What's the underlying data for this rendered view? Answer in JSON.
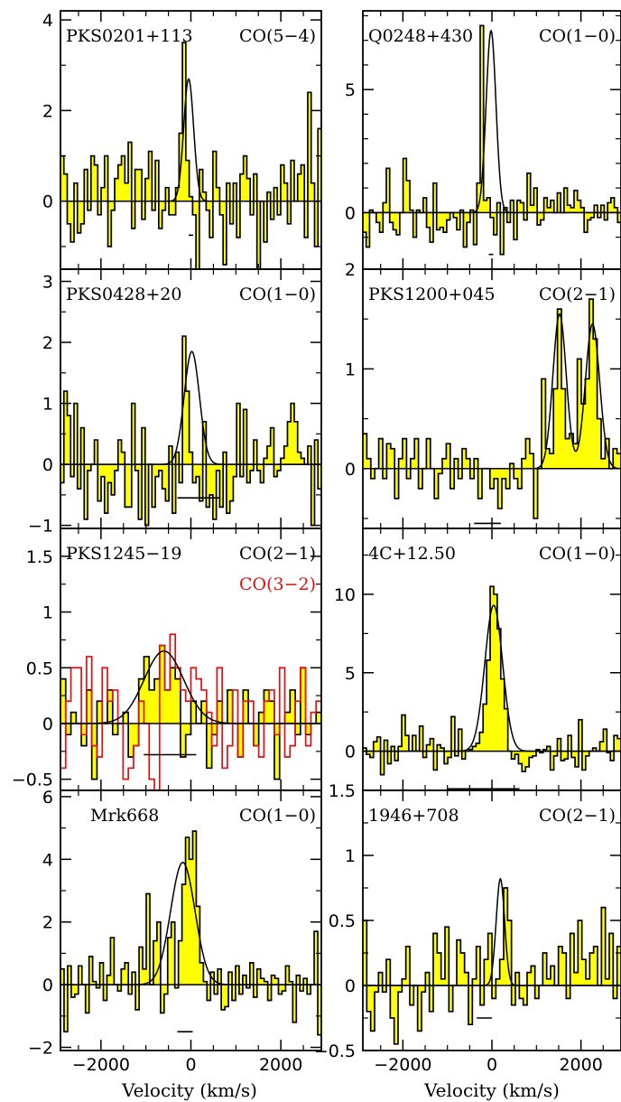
{
  "figure": {
    "xlabel": "Velocity (km/s)",
    "colors": {
      "fill": "#ffff00",
      "stroke": "#000000",
      "fit": "#000000",
      "overlay": "#e01010",
      "baseline": "#000000"
    }
  },
  "chart_data": [
    {
      "type": "line",
      "source": "PKS0201+113",
      "transition": "CO(5−4)",
      "xlim": [
        -2900,
        2900
      ],
      "ylim": [
        -1.5,
        4.2
      ],
      "yticks": [
        0,
        2,
        4
      ],
      "yminor": [
        -1,
        1,
        3
      ],
      "xticks": [
        -2000,
        0,
        2000
      ],
      "xminor": [
        -2500,
        -1500,
        -1000,
        -500,
        500,
        1000,
        1500,
        2500
      ],
      "show_xtick_labels": false,
      "fit": [
        {
          "amp": 2.7,
          "center": -50,
          "sigma": 110
        }
      ],
      "width_bar": {
        "x": [
          -50,
          50
        ],
        "y": -0.75
      },
      "series": [
        {
          "values": [
            1.0,
            0.6,
            -0.5,
            -0.9,
            0.4,
            -0.7,
            -0.5,
            0.7,
            -0.2,
            1.0,
            0.8,
            -0.3,
            0.3,
            1.0,
            -1.0,
            -0.2,
            0.5,
            0.8,
            1.0,
            0.4,
            1.3,
            -0.6,
            0.7,
            0.7,
            -0.4,
            0.5,
            1.1,
            -0.2,
            0.9,
            -0.6,
            -0.2,
            0.3,
            -0.3,
            -0.3,
            0.3,
            1.5,
            3.5,
            0.9,
            0.1,
            -0.3,
            -1.5,
            0.7,
            0.2,
            -0.2,
            -0.8,
            1.1,
            0.3,
            -0.3,
            -1.4,
            0.4,
            -0.5,
            0.4,
            -0.8,
            0.6,
            1.0,
            0.5,
            -0.3,
            0.6,
            -1.5,
            0.0,
            -0.9,
            0.2,
            -0.4,
            0.3,
            -0.3,
            0.8,
            0.4,
            -0.5,
            0.9,
            0.0,
            0.6,
            0.8,
            -0.8,
            2.4,
            0.4,
            -1.0,
            1.6
          ]
        }
      ]
    },
    {
      "type": "line",
      "source": "Q0248+430",
      "transition": "CO(1−0)",
      "xlim": [
        -2900,
        2900
      ],
      "ylim": [
        -2.3,
        8.2
      ],
      "yticks": [
        0,
        5
      ],
      "yminor": [
        -1,
        1,
        2,
        3,
        4,
        6,
        7,
        8
      ],
      "xticks": [
        -2000,
        0,
        2000
      ],
      "xminor": [
        -2500,
        -1500,
        -1000,
        -500,
        500,
        1000,
        1500,
        2500
      ],
      "show_xtick_labels": false,
      "fit": [
        {
          "amp": 7.4,
          "center": -20,
          "sigma": 110
        }
      ],
      "width_bar": {
        "x": [
          -70,
          30
        ],
        "y": -1.7
      },
      "series": [
        {
          "values": [
            -0.8,
            -1.4,
            0.1,
            0.0,
            -0.4,
            -0.8,
            0.4,
            1.8,
            -0.4,
            -0.7,
            -0.9,
            0.0,
            2.2,
            1.3,
            0.1,
            -1.0,
            0.1,
            0.0,
            0.6,
            -0.6,
            -1.2,
            1.2,
            -0.7,
            -0.6,
            -0.8,
            -0.3,
            0.0,
            -0.2,
            -0.7,
            0.1,
            -1.4,
            -0.4,
            0.1,
            -1.3,
            1.2,
            7.6,
            0.5,
            0.6,
            -0.2,
            -0.9,
            0.4,
            -1.7,
            0.2,
            -0.4,
            0.5,
            -1.1,
            0.5,
            0.4,
            -0.3,
            1.6,
            0.3,
            1.0,
            -0.5,
            -0.3,
            0.6,
            0.2,
            0.5,
            0.0,
            0.8,
            0.0,
            1.0,
            0.3,
            0.2,
            0.9,
            0.5,
            0.2,
            -0.8,
            -0.3,
            -0.2,
            0.3,
            -0.2,
            0.3,
            -0.3,
            0.4,
            0.6,
            0.2,
            -0.4
          ]
        }
      ]
    },
    {
      "type": "line",
      "source": "PKS0428+20",
      "transition": "CO(1−0)",
      "xlim": [
        -2900,
        2900
      ],
      "ylim": [
        -1.05,
        3.2
      ],
      "yticks": [
        -1,
        0,
        1,
        2,
        3
      ],
      "yminor": [
        -0.5,
        0.5,
        1.5,
        2.5
      ],
      "xticks": [
        -2000,
        0,
        2000
      ],
      "xminor": [
        -2500,
        -1500,
        -1000,
        -500,
        500,
        1000,
        1500,
        2500
      ],
      "show_xtick_labels": false,
      "fit": [
        {
          "amp": 1.85,
          "center": 20,
          "sigma": 170
        }
      ],
      "width_bar": {
        "x": [
          -300,
          660
        ],
        "y": -0.55
      },
      "series": [
        {
          "values": [
            -0.3,
            1.2,
            0.8,
            -0.2,
            1.0,
            -0.4,
            0.6,
            -0.9,
            -0.1,
            0.0,
            0.4,
            -0.6,
            -0.2,
            -0.8,
            -0.3,
            -0.5,
            -0.1,
            0.4,
            0.2,
            -0.7,
            -0.7,
            1.0,
            -0.1,
            -0.9,
            0.6,
            -1.0,
            0.0,
            -0.7,
            -0.2,
            -0.1,
            -0.4,
            -0.6,
            0.3,
            -0.8,
            0.2,
            -0.3,
            2.1,
            1.2,
            0.2,
            -0.3,
            -0.2,
            -0.6,
            0.7,
            -0.7,
            -0.5,
            -0.9,
            -0.1,
            -0.7,
            0.2,
            -0.8,
            -0.6,
            -0.2,
            1.0,
            -0.2,
            0.9,
            -0.3,
            -0.1,
            0.4,
            -0.1,
            -0.3,
            0.1,
            0.3,
            0.6,
            -0.2,
            -0.1,
            0.1,
            0.3,
            0.7,
            1.0,
            0.7,
            0.2,
            0.1,
            0.0,
            0.3,
            -1.0,
            0.4,
            -0.4
          ]
        }
      ]
    },
    {
      "type": "line",
      "source": "PKS1200+045",
      "transition": "CO(2−1)",
      "xlim": [
        -2900,
        2900
      ],
      "ylim": [
        -0.6,
        2.0
      ],
      "yticks": [
        0,
        1,
        2
      ],
      "yminor": [
        -0.5,
        0.5,
        1.5
      ],
      "xticks": [
        -2000,
        0,
        2000
      ],
      "xminor": [
        -2500,
        -1500,
        -1000,
        -500,
        500,
        1000,
        1500,
        2500
      ],
      "show_xtick_labels": false,
      "fit": [
        {
          "amp": 1.55,
          "center": 1520,
          "sigma": 150
        },
        {
          "amp": 1.45,
          "center": 2260,
          "sigma": 160
        }
      ],
      "width_bar": {
        "x": [
          -400,
          200
        ],
        "y": -0.55
      },
      "series": [
        {
          "values": [
            0.35,
            0.1,
            -0.1,
            0.0,
            0.3,
            -0.1,
            0.25,
            0.2,
            -0.3,
            0.1,
            0.3,
            -0.1,
            0.1,
            0.3,
            -0.2,
            0.0,
            0.3,
            0.0,
            -0.3,
            -0.05,
            0.1,
            0.25,
            -0.2,
            0.1,
            -0.1,
            0.2,
            0.1,
            -0.1,
            0.1,
            -0.3,
            0.0,
            0.0,
            -0.2,
            -0.1,
            -0.4,
            -0.1,
            -0.2,
            0.05,
            -0.1,
            -0.2,
            0.1,
            0.3,
            0.15,
            -0.5,
            0.0,
            0.9,
            0.2,
            0.15,
            0.8,
            1.6,
            0.8,
            0.3,
            0.35,
            0.25,
            1.1,
            0.65,
            0.9,
            1.7,
            1.3,
            0.5,
            0.1,
            0.3,
            0.0,
            0.2,
            0.15
          ]
        }
      ]
    },
    {
      "type": "line",
      "source": "PKS1245−19",
      "transition": "CO(2−1)",
      "transition_overlay": "CO(3−2)",
      "xlim": [
        -2900,
        2900
      ],
      "ylim": [
        -0.6,
        1.75
      ],
      "yticks": [
        -0.5,
        0,
        0.5,
        1,
        1.5
      ],
      "yminor": [
        -0.25,
        0.25,
        0.75,
        1.25
      ],
      "xticks": [
        -2000,
        0,
        2000
      ],
      "xminor": [
        -2500,
        -1500,
        -1000,
        -500,
        500,
        1000,
        1500,
        2500
      ],
      "show_xtick_labels": false,
      "fit": [
        {
          "amp": 0.65,
          "center": -600,
          "sigma": 440
        }
      ],
      "width_bar": {
        "x": [
          -1050,
          120
        ],
        "y": -0.28
      },
      "series": [
        {
          "name": "CO(2−1)",
          "values": [
            0.4,
            -0.1,
            0.1,
            0.0,
            -0.2,
            0.3,
            -0.5,
            0.2,
            0.0,
            0.3,
            -0.1,
            0.0,
            0.1,
            -0.3,
            -0.2,
            0.4,
            0.6,
            0.3,
            0.4,
            0.7,
            0.3,
            0.5,
            0.4,
            -0.3,
            -0.1,
            0.2,
            0.0,
            0.2,
            -0.4,
            -0.1,
            0.2,
            0.0,
            0.3,
            0.0,
            -0.3,
            0.3,
            0.0,
            -0.2,
            0.1,
            0.3,
            0.2,
            -0.5,
            0.0,
            0.1,
            0.3,
            -0.1,
            0.5,
            -0.1,
            0.0,
            0.1
          ]
        },
        {
          "name": "CO(3−2)",
          "values": [
            -0.4,
            0.2,
            0.5,
            0.5,
            -0.1,
            0.6,
            -0.2,
            -0.3,
            0.5,
            0.2,
            0.3,
            0.0,
            -0.5,
            -0.4,
            -0.2,
            0.2,
            0.0,
            -0.5,
            -0.6,
            0.7,
            0.3,
            0.8,
            0.5,
            0.3,
            0.2,
            0.5,
            0.4,
            0.3,
            0.1,
            -0.2,
            0.5,
            -0.4,
            -0.2,
            0.3,
            -0.3,
            0.2,
            0.2,
            -0.2,
            -0.3,
            0.2,
            0.3,
            -0.1,
            0.5,
            -0.3,
            -0.2,
            0.2,
            0.5,
            -0.2,
            0.1,
            0.2
          ]
        }
      ]
    },
    {
      "type": "line",
      "source": "4C+12.50",
      "transition": "CO(1−0)",
      "xlim": [
        -2900,
        2900
      ],
      "ylim": [
        -2.5,
        14.2
      ],
      "yticks": [
        0,
        5,
        10
      ],
      "yminor": [
        -2.5,
        2.5,
        7.5,
        12.5
      ],
      "xticks": [
        -2000,
        0,
        2000
      ],
      "xminor": [
        -2500,
        -1500,
        -1000,
        -500,
        500,
        1000,
        1500,
        2500
      ],
      "show_xtick_labels": false,
      "fit": [
        {
          "amp": 9.3,
          "center": 40,
          "sigma": 200
        }
      ],
      "width_bar": {
        "x": [
          -1000,
          620
        ],
        "y": -2.4
      },
      "series": [
        {
          "values": [
            0.2,
            -0.2,
            -0.4,
            0.6,
            0.9,
            -1.5,
            0.7,
            -0.8,
            0.3,
            -0.6,
            0.3,
            2.3,
            1.0,
            0.0,
            1.0,
            0.0,
            1.6,
            -0.4,
            0.4,
            0.8,
            -1.2,
            0.4,
            0.2,
            -0.8,
            -0.4,
            2.2,
            -0.3,
            1.4,
            -0.5,
            0.0,
            0.1,
            0.3,
            0.5,
            1.2,
            3.0,
            5.8,
            10.5,
            10.0,
            7.8,
            4.6,
            2.7,
            0.0,
            -0.5,
            -0.2,
            -0.8,
            -1.3,
            -1.0,
            -0.4,
            -0.3,
            0.1,
            -0.1,
            0.1,
            0.3,
            -1.2,
            -0.3,
            0.8,
            -0.6,
            -0.5,
            1.0,
            -0.4,
            -1.0,
            2.0,
            -1.2,
            -0.3,
            0.0,
            0.2,
            0.0,
            0.6,
            1.4,
            -0.1,
            -0.6,
            1.0,
            0.8
          ]
        }
      ]
    },
    {
      "type": "line",
      "source": "Mrk668",
      "transition": "CO(1−0)",
      "xlim": [
        -2900,
        2900
      ],
      "ylim": [
        -2.1,
        6.2
      ],
      "yticks": [
        -2,
        0,
        2,
        4,
        6
      ],
      "yminor": [
        -1,
        1,
        3,
        5
      ],
      "xticks": [
        -2000,
        0,
        2000
      ],
      "xminor": [
        -2500,
        -1500,
        -1000,
        -500,
        500,
        1000,
        1500,
        2500
      ],
      "show_xtick_labels": true,
      "fit": [
        {
          "amp": 3.9,
          "center": -180,
          "sigma": 270
        }
      ],
      "width_bar": {
        "x": [
          -300,
          40
        ],
        "y": -1.5
      },
      "series": [
        {
          "values": [
            0.5,
            -1.5,
            0.6,
            -0.4,
            -0.3,
            0.6,
            0.0,
            -0.9,
            0.9,
            0.1,
            -0.1,
            0.7,
            -0.5,
            0.3,
            1.5,
            0.0,
            -0.2,
            0.5,
            0.7,
            -0.3,
            0.4,
            -0.8,
            1.2,
            0.5,
            2.9,
            0.0,
            1.4,
            2.0,
            -0.9,
            -0.3,
            1.5,
            2.0,
            -0.1,
            1.4,
            3.2,
            4.7,
            4.0,
            4.9,
            2.5,
            0.7,
            0.1,
            -0.5,
            0.4,
            -0.3,
            0.5,
            -0.8,
            -0.7,
            0.4,
            -0.5,
            0.6,
            -0.3,
            0.3,
            -0.1,
            0.7,
            -0.4,
            0.5,
            0.2,
            0.1,
            -0.5,
            0.3,
            0.2,
            -0.3,
            -0.2,
            0.6,
            0.1,
            -1.2,
            0.3,
            -0.2,
            0.2,
            -0.3,
            0.0,
            1.7,
            -1.6
          ]
        }
      ]
    },
    {
      "type": "line",
      "source": "1946+708",
      "transition": "CO(2−1)",
      "xlim": [
        -2900,
        2900
      ],
      "ylim": [
        -0.5,
        1.5
      ],
      "yticks": [
        -0.5,
        0,
        0.5,
        1,
        1.5
      ],
      "yminor": [
        -0.25,
        0.25,
        0.75,
        1.25
      ],
      "xticks": [
        -2000,
        0,
        2000
      ],
      "xminor": [
        -2500,
        -1500,
        -1000,
        -500,
        500,
        1000,
        1500,
        2500
      ],
      "show_xtick_labels": true,
      "fit": [
        {
          "amp": 0.82,
          "center": 190,
          "sigma": 95
        }
      ],
      "width_bar": {
        "x": [
          -340,
          0
        ],
        "y": -0.25
      },
      "series": [
        {
          "values": [
            0.5,
            -0.2,
            -0.35,
            -0.05,
            0.1,
            -0.05,
            0.2,
            -0.25,
            -0.45,
            -0.05,
            0.05,
            0.3,
            -0.15,
            0.0,
            -0.35,
            -0.05,
            0.1,
            -0.2,
            0.4,
            0.25,
            0.05,
            0.45,
            -0.2,
            0.0,
            0.35,
            0.25,
            0.1,
            -0.3,
            0.05,
            0.3,
            -0.15,
            0.2,
            0.4,
            -0.1,
            0.05,
            0.2,
            0.75,
            0.5,
            -0.15,
            0.1,
            -0.1,
            -0.15,
            0.1,
            0.15,
            -0.1,
            0.0,
            0.25,
            0.05,
            0.15,
            0.0,
            0.3,
            0.25,
            -0.1,
            0.4,
            0.1,
            0.5,
            0.2,
            0.05,
            0.25,
            0.3,
            0.0,
            0.6,
            0.05,
            0.4,
            -0.1,
            0.3
          ]
        }
      ]
    }
  ]
}
